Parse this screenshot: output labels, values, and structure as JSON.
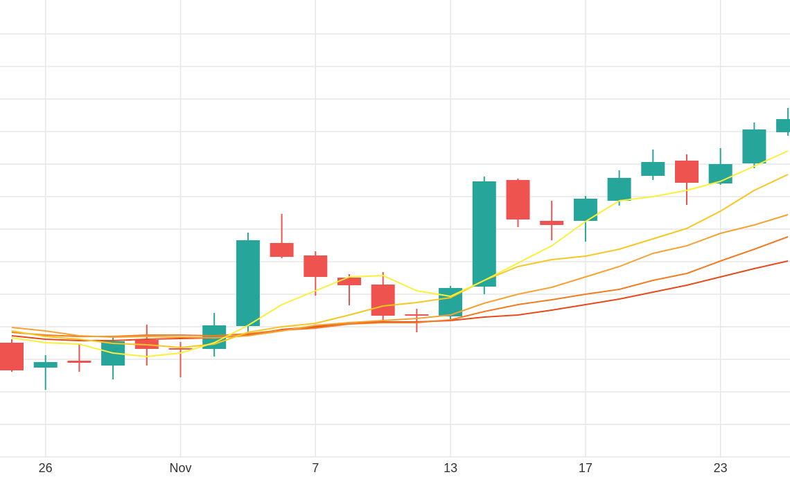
{
  "chart_data": {
    "type": "candlestick",
    "categories": [
      null,
      "26",
      null,
      null,
      null,
      "Nov",
      null,
      null,
      null,
      "7",
      null,
      null,
      null,
      "13",
      null,
      null,
      null,
      "17",
      null,
      null,
      null,
      "23",
      null,
      null
    ],
    "open": [
      165,
      129,
      139,
      132,
      169,
      157,
      156,
      189,
      309,
      291,
      259,
      249,
      206,
      203,
      246,
      400,
      341,
      341,
      370,
      406,
      428,
      395,
      424,
      469
    ],
    "high": [
      170,
      147,
      163,
      172,
      191,
      166,
      208,
      324,
      351,
      297,
      264,
      267,
      214,
      247,
      405,
      402,
      370,
      377,
      414,
      444,
      437,
      446,
      483,
      504
    ],
    "low": [
      123,
      97,
      123,
      112,
      132,
      115,
      145,
      176,
      287,
      233,
      219,
      198,
      180,
      199,
      235,
      332,
      313,
      311,
      363,
      400,
      364,
      393,
      417,
      464
    ],
    "close": [
      125,
      137,
      136,
      167,
      156,
      155,
      190,
      313,
      289,
      260,
      248,
      204,
      204,
      244,
      398,
      343,
      335,
      373,
      403,
      426,
      396,
      423,
      473,
      488
    ],
    "up_color": "#26a69a",
    "down_color": "#ef5350",
    "moving_averages": [
      {
        "color": "#e8491a",
        "values": [
          175,
          170,
          168,
          168,
          170,
          171,
          172,
          176,
          184,
          188,
          194,
          195,
          195,
          197,
          202,
          205,
          212,
          220,
          228,
          238,
          248,
          260,
          272,
          283
        ]
      },
      {
        "color": "#f27c22",
        "values": [
          180,
          176,
          174,
          174,
          176,
          176,
          175,
          178,
          183,
          186,
          192,
          194,
          194,
          198,
          210,
          220,
          227,
          235,
          242,
          255,
          265,
          283,
          300,
          318
        ]
      },
      {
        "color": "#f6a233",
        "values": [
          187,
          182,
          175,
          173,
          174,
          173,
          172,
          175,
          182,
          190,
          194,
          197,
          200,
          205,
          222,
          235,
          245,
          260,
          275,
          294,
          305,
          323,
          335,
          350
        ]
      },
      {
        "color": "#f7c623",
        "values": [
          182,
          174,
          170,
          164,
          162,
          158,
          163,
          180,
          188,
          193,
          205,
          218,
          223,
          230,
          255,
          275,
          285,
          290,
          300,
          315,
          330,
          355,
          385,
          408
        ]
      },
      {
        "color": "#fbef3a",
        "values": [
          172,
          165,
          163,
          150,
          145,
          150,
          165,
          190,
          220,
          240,
          260,
          262,
          240,
          232,
          255,
          280,
          305,
          340,
          370,
          376,
          385,
          398,
          420,
          442
        ]
      }
    ],
    "ylim": [
      0,
      660
    ],
    "yticks": [
      0,
      47,
      94,
      141,
      188,
      235,
      282,
      329,
      376,
      423,
      470,
      517,
      564,
      611
    ],
    "grid": true
  }
}
